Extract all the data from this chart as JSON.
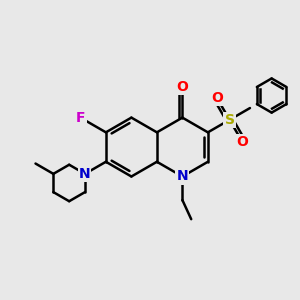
{
  "background_color": "#e8e8e8",
  "bond_color": "#000000",
  "N_color": "#0000cc",
  "O_color": "#ff0000",
  "F_color": "#cc00cc",
  "S_color": "#aaaa00",
  "line_width": 1.8,
  "figsize": [
    3.0,
    3.0
  ],
  "dpi": 100,
  "xlim": [
    0,
    10
  ],
  "ylim": [
    0,
    10
  ]
}
